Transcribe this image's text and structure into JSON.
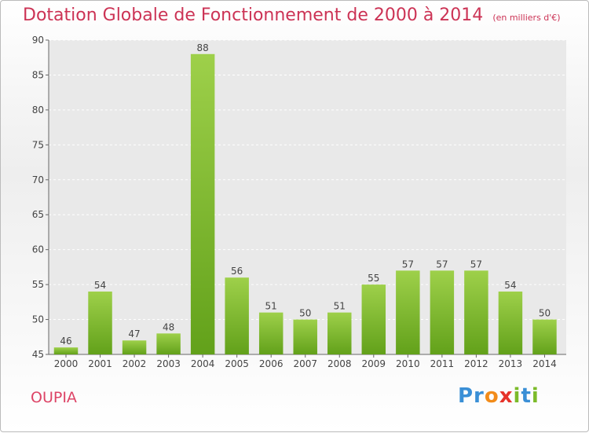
{
  "chart_data": {
    "type": "bar",
    "title": "Dotation Globale de Fonctionnement de 2000 à 2014",
    "subtitle": "(en milliers d'€)",
    "categories": [
      "2000",
      "2001",
      "2002",
      "2003",
      "2004",
      "2005",
      "2006",
      "2007",
      "2008",
      "2009",
      "2010",
      "2011",
      "2012",
      "2013",
      "2014"
    ],
    "values": [
      46,
      54,
      47,
      48,
      88,
      56,
      51,
      50,
      51,
      55,
      57,
      57,
      57,
      54,
      50
    ],
    "ylim": [
      45,
      90
    ],
    "yticks": [
      45,
      50,
      55,
      60,
      65,
      70,
      75,
      80,
      85,
      90
    ],
    "grid": true,
    "bar_color": "#7dbb2a"
  },
  "commune": "OUPIA",
  "logo": {
    "p1": "Pr",
    "p2": "o",
    "p3": "x",
    "p4": "i",
    "p5": "t",
    "p6": "i"
  }
}
